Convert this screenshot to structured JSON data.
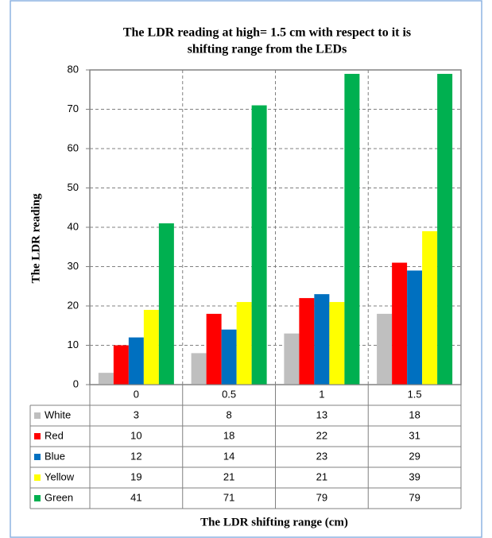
{
  "chart_data": {
    "type": "bar",
    "title": [
      "The LDR reading at high= 1.5 cm with respect to it is",
      "shifting range from the LEDs"
    ],
    "y_label": "The LDR reading",
    "x_label": "The LDR shifting range (cm)",
    "categories": [
      "0",
      "0.5",
      "1",
      "1.5"
    ],
    "series": [
      {
        "name": "White",
        "color": "#bfbfbf",
        "values": [
          3,
          8,
          13,
          18
        ]
      },
      {
        "name": "Red",
        "color": "#ff0000",
        "values": [
          10,
          18,
          22,
          31
        ]
      },
      {
        "name": "Blue",
        "color": "#0070c0",
        "values": [
          12,
          14,
          23,
          29
        ]
      },
      {
        "name": "Yellow",
        "color": "#ffff00",
        "values": [
          19,
          21,
          21,
          39
        ]
      },
      {
        "name": "Green",
        "color": "#00b050",
        "values": [
          41,
          71,
          79,
          79
        ]
      }
    ],
    "ylim": [
      0,
      80
    ],
    "yticks": [
      0,
      10,
      20,
      30,
      40,
      50,
      60,
      70,
      80
    ],
    "grid": true
  }
}
